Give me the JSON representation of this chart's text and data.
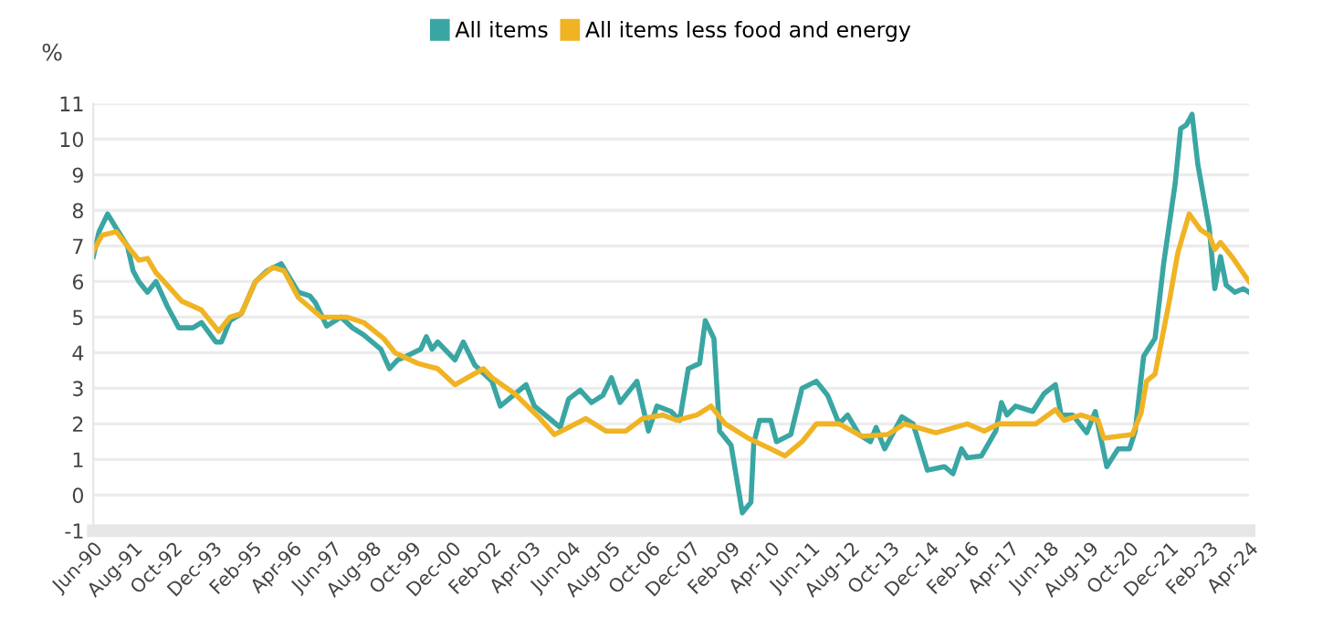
{
  "chart_data": {
    "type": "line",
    "ylabel": "%",
    "legend": "top",
    "grid": "y",
    "marker": "none",
    "line_style": "solid",
    "xlim": [
      "1990-06",
      "2024-04"
    ],
    "ylim": [
      -1,
      11
    ],
    "yticks": [
      -1,
      0,
      1,
      2,
      3,
      4,
      5,
      6,
      7,
      8,
      9,
      10,
      11
    ],
    "xticks": [
      {
        "value": "1990-06",
        "label": "Jun-90"
      },
      {
        "value": "1991-08",
        "label": "Aug-91"
      },
      {
        "value": "1992-10",
        "label": "Oct-92"
      },
      {
        "value": "1993-12",
        "label": "Dec-93"
      },
      {
        "value": "1995-02",
        "label": "Feb-95"
      },
      {
        "value": "1996-04",
        "label": "Apr-96"
      },
      {
        "value": "1997-06",
        "label": "Jun-97"
      },
      {
        "value": "1998-08",
        "label": "Aug-98"
      },
      {
        "value": "1999-10",
        "label": "Oct-99"
      },
      {
        "value": "2000-12",
        "label": "Dec-00"
      },
      {
        "value": "2002-02",
        "label": "Feb-02"
      },
      {
        "value": "2003-04",
        "label": "Apr-03"
      },
      {
        "value": "2004-06",
        "label": "Jun-04"
      },
      {
        "value": "2005-08",
        "label": "Aug-05"
      },
      {
        "value": "2006-10",
        "label": "Oct-06"
      },
      {
        "value": "2007-12",
        "label": "Dec-07"
      },
      {
        "value": "2009-02",
        "label": "Feb-09"
      },
      {
        "value": "2010-04",
        "label": "Apr-10"
      },
      {
        "value": "2011-06",
        "label": "Jun-11"
      },
      {
        "value": "2012-08",
        "label": "Aug-12"
      },
      {
        "value": "2013-10",
        "label": "Oct-13"
      },
      {
        "value": "2014-12",
        "label": "Dec-14"
      },
      {
        "value": "2016-02",
        "label": "Feb-16"
      },
      {
        "value": "2017-04",
        "label": "Apr-17"
      },
      {
        "value": "2018-06",
        "label": "Jun-18"
      },
      {
        "value": "2019-08",
        "label": "Aug-19"
      },
      {
        "value": "2020-10",
        "label": "Oct-20"
      },
      {
        "value": "2021-12",
        "label": "Dec-21"
      },
      {
        "value": "2023-02",
        "label": "Feb-23"
      },
      {
        "value": "2024-04",
        "label": "Apr-24"
      }
    ],
    "series": [
      {
        "name": "All items",
        "color": "#3aa6a3",
        "x": [
          "1990-06",
          "1990-08",
          "1990-11",
          "1991-02",
          "1991-06",
          "1991-08",
          "1991-10",
          "1992-01",
          "1992-04",
          "1992-08",
          "1992-12",
          "1993-05",
          "1993-08",
          "1994-01",
          "1994-03",
          "1994-06",
          "1994-10",
          "1995-03",
          "1995-07",
          "1995-12",
          "1996-06",
          "1996-10",
          "1996-12",
          "1997-04",
          "1997-09",
          "1998-01",
          "1998-05",
          "1998-11",
          "1999-02",
          "1999-05",
          "1999-08",
          "2000-01",
          "2000-03",
          "2000-05",
          "2000-07",
          "2001-01",
          "2001-04",
          "2001-08",
          "2002-02",
          "2002-05",
          "2002-08",
          "2003-02",
          "2003-05",
          "2003-11",
          "2004-02",
          "2004-05",
          "2004-09",
          "2005-01",
          "2005-05",
          "2005-08",
          "2005-11",
          "2006-05",
          "2006-09",
          "2006-12",
          "2007-05",
          "2007-08",
          "2007-11",
          "2008-03",
          "2008-05",
          "2008-08",
          "2008-10",
          "2009-02",
          "2009-06",
          "2009-09",
          "2009-10",
          "2009-12",
          "2010-04",
          "2010-06",
          "2010-11",
          "2011-03",
          "2011-08",
          "2011-12",
          "2012-04",
          "2012-07",
          "2012-11",
          "2013-03",
          "2013-05",
          "2013-08",
          "2014-02",
          "2014-06",
          "2014-11",
          "2015-05",
          "2015-08",
          "2015-11",
          "2016-01",
          "2016-06",
          "2016-11",
          "2017-01",
          "2017-03",
          "2017-06",
          "2017-12",
          "2018-04",
          "2018-08",
          "2018-10",
          "2019-02",
          "2019-07",
          "2019-10",
          "2020-02",
          "2020-06",
          "2020-10",
          "2020-12",
          "2021-03",
          "2021-07",
          "2021-10",
          "2022-02",
          "2022-04",
          "2022-06",
          "2022-08",
          "2022-10",
          "2023-02",
          "2023-04",
          "2023-06",
          "2023-08",
          "2023-11",
          "2024-02",
          "2024-04"
        ],
        "values": [
          6.7,
          7.4,
          7.9,
          7.5,
          7.0,
          6.3,
          6.0,
          5.7,
          6.0,
          5.3,
          4.7,
          4.7,
          4.85,
          4.3,
          4.3,
          4.9,
          5.1,
          6.0,
          6.3,
          6.5,
          5.7,
          5.6,
          5.4,
          4.75,
          5.0,
          4.7,
          4.5,
          4.1,
          3.55,
          3.8,
          3.9,
          4.1,
          4.45,
          4.1,
          4.3,
          3.8,
          4.3,
          3.65,
          3.2,
          2.5,
          2.7,
          3.1,
          2.5,
          2.1,
          1.9,
          2.7,
          2.95,
          2.6,
          2.8,
          3.3,
          2.6,
          3.2,
          1.8,
          2.5,
          2.35,
          2.1,
          3.55,
          3.7,
          4.9,
          4.4,
          1.8,
          1.4,
          -0.5,
          -0.2,
          1.45,
          2.1,
          2.1,
          1.5,
          1.7,
          3.0,
          3.2,
          2.8,
          2.0,
          2.25,
          1.7,
          1.5,
          1.9,
          1.3,
          2.2,
          2.0,
          0.7,
          0.8,
          0.6,
          1.3,
          1.05,
          1.1,
          1.8,
          2.6,
          2.25,
          2.5,
          2.35,
          2.85,
          3.1,
          2.25,
          2.25,
          1.75,
          2.35,
          0.8,
          1.3,
          1.3,
          1.8,
          3.9,
          4.4,
          6.5,
          8.75,
          10.3,
          10.4,
          10.7,
          9.3,
          7.5,
          5.8,
          6.7,
          5.9,
          5.7,
          5.8,
          5.7
        ]
      },
      {
        "name": "All items less food and energy",
        "color": "#f0b323",
        "x": [
          "1990-06",
          "1990-09",
          "1991-02",
          "1991-06",
          "1991-10",
          "1992-01",
          "1992-04",
          "1993-01",
          "1993-08",
          "1994-02",
          "1994-06",
          "1994-10",
          "1995-03",
          "1995-09",
          "1996-01",
          "1996-06",
          "1997-02",
          "1997-11",
          "1998-05",
          "1998-12",
          "1999-04",
          "1999-12",
          "2000-07",
          "2001-01",
          "2001-11",
          "2002-02",
          "2002-10",
          "2003-07",
          "2003-12",
          "2004-05",
          "2004-11",
          "2005-06",
          "2006-01",
          "2006-07",
          "2007-02",
          "2007-07",
          "2008-02",
          "2008-07",
          "2008-12",
          "2009-08",
          "2010-04",
          "2010-09",
          "2011-03",
          "2011-08",
          "2012-04",
          "2012-12",
          "2013-09",
          "2014-03",
          "2015-02",
          "2016-01",
          "2016-07",
          "2016-12",
          "2018-01",
          "2018-08",
          "2018-11",
          "2019-05",
          "2019-11",
          "2020-01",
          "2020-11",
          "2021-02",
          "2021-04",
          "2021-07",
          "2021-12",
          "2022-03",
          "2022-07",
          "2022-11",
          "2023-02",
          "2023-04",
          "2023-06",
          "2023-10",
          "2024-04"
        ],
        "values": [
          6.85,
          7.3,
          7.4,
          7.0,
          6.6,
          6.65,
          6.25,
          5.45,
          5.2,
          4.6,
          5.0,
          5.1,
          6.0,
          6.4,
          6.3,
          5.55,
          5.0,
          5.0,
          4.85,
          4.4,
          4.0,
          3.7,
          3.55,
          3.1,
          3.55,
          3.3,
          2.85,
          2.15,
          1.7,
          1.9,
          2.15,
          1.8,
          1.8,
          2.15,
          2.25,
          2.1,
          2.25,
          2.5,
          2.0,
          1.6,
          1.3,
          1.1,
          1.5,
          2.0,
          2.0,
          1.65,
          1.7,
          2.0,
          1.75,
          2.0,
          1.8,
          2.0,
          2.0,
          2.4,
          2.1,
          2.25,
          2.1,
          1.6,
          1.7,
          2.3,
          3.2,
          3.4,
          5.45,
          6.8,
          7.9,
          7.45,
          7.3,
          6.9,
          7.1,
          6.7,
          6.0
        ]
      }
    ]
  }
}
